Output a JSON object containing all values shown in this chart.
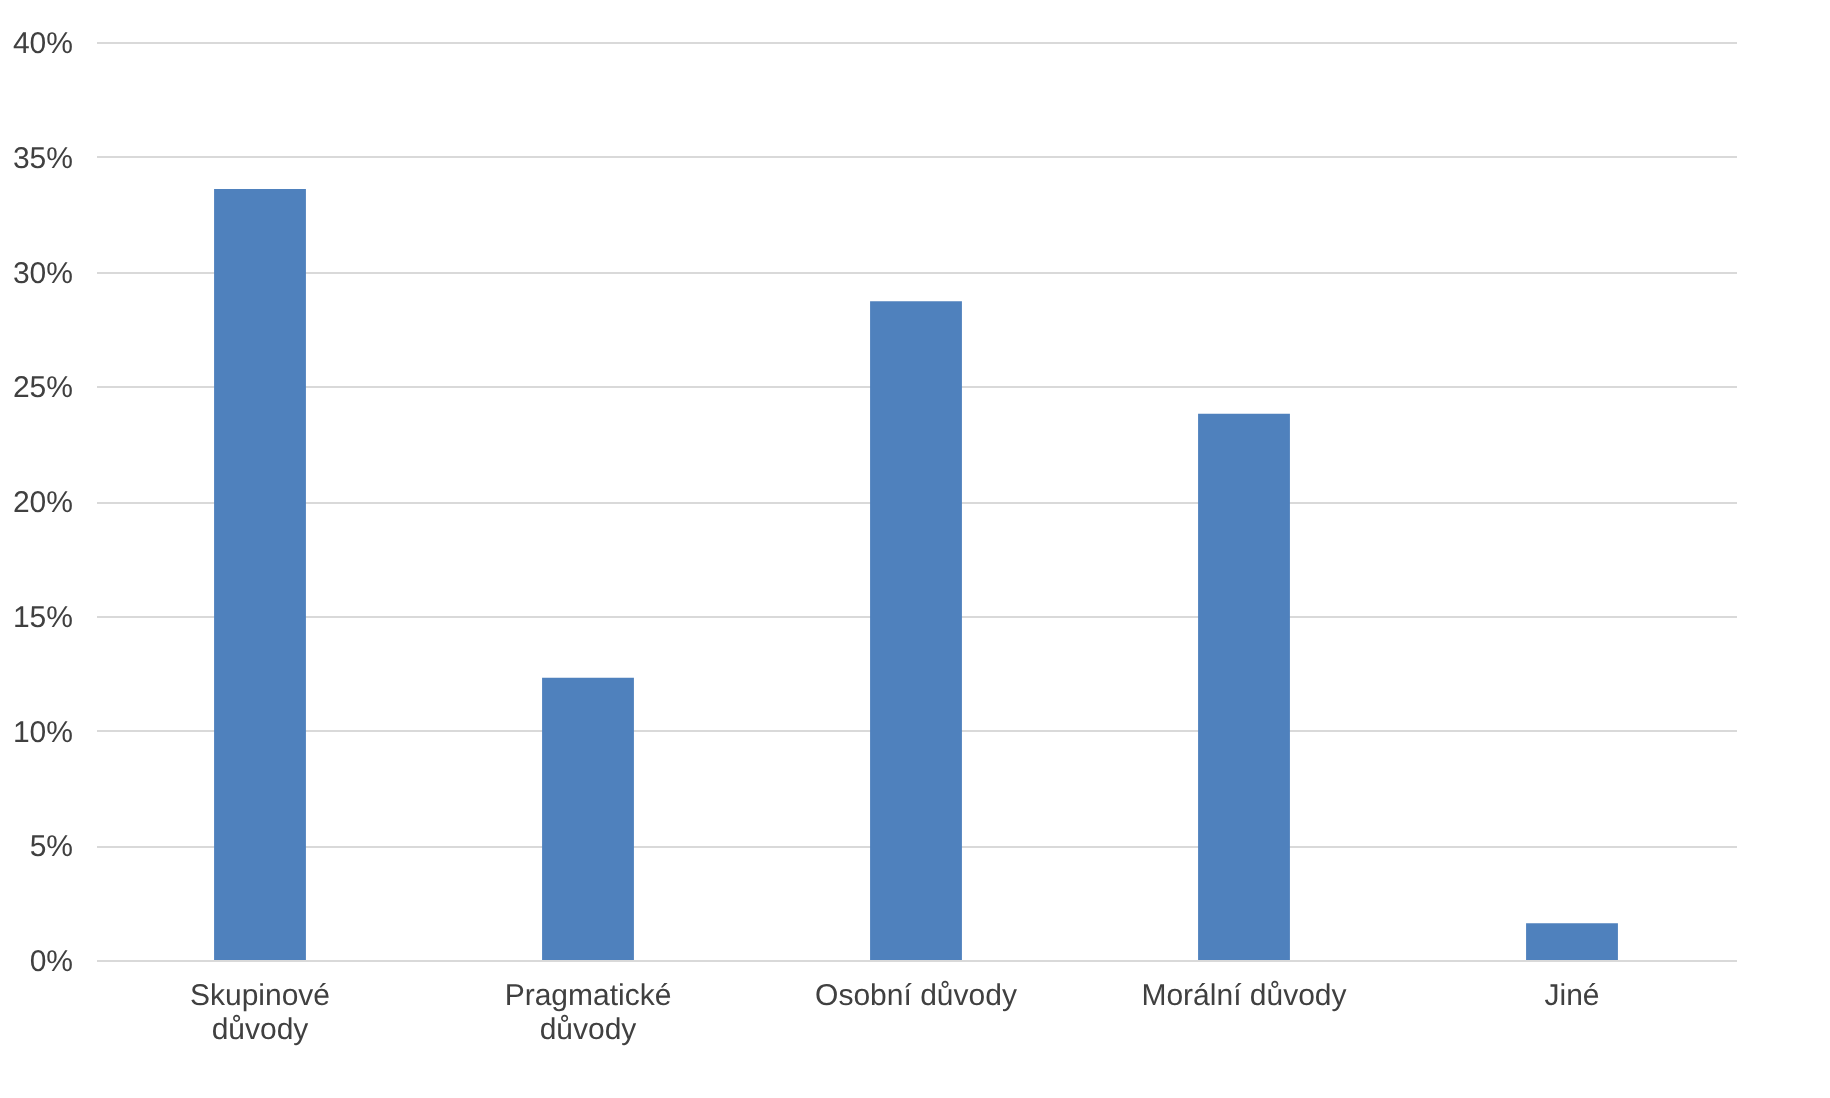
{
  "chart_data": {
    "type": "bar",
    "categories": [
      "Skupinové důvody",
      "Pragmatické důvody",
      "Osobní důvody",
      "Morální důvody",
      "Jiné"
    ],
    "values": [
      33.6,
      12.3,
      28.7,
      23.8,
      1.6
    ],
    "color": "#4f81bd",
    "ylim": [
      0,
      40
    ],
    "yticks": [
      {
        "value": 0,
        "label": "0%"
      },
      {
        "value": 5,
        "label": "5%"
      },
      {
        "value": 10,
        "label": "10%"
      },
      {
        "value": 15,
        "label": "15%"
      },
      {
        "value": 20,
        "label": "20%"
      },
      {
        "value": 25,
        "label": "25%"
      },
      {
        "value": 30,
        "label": "30%"
      },
      {
        "value": 35,
        "label": "35%"
      },
      {
        "value": 40,
        "label": "40%"
      }
    ],
    "grid": "y"
  }
}
